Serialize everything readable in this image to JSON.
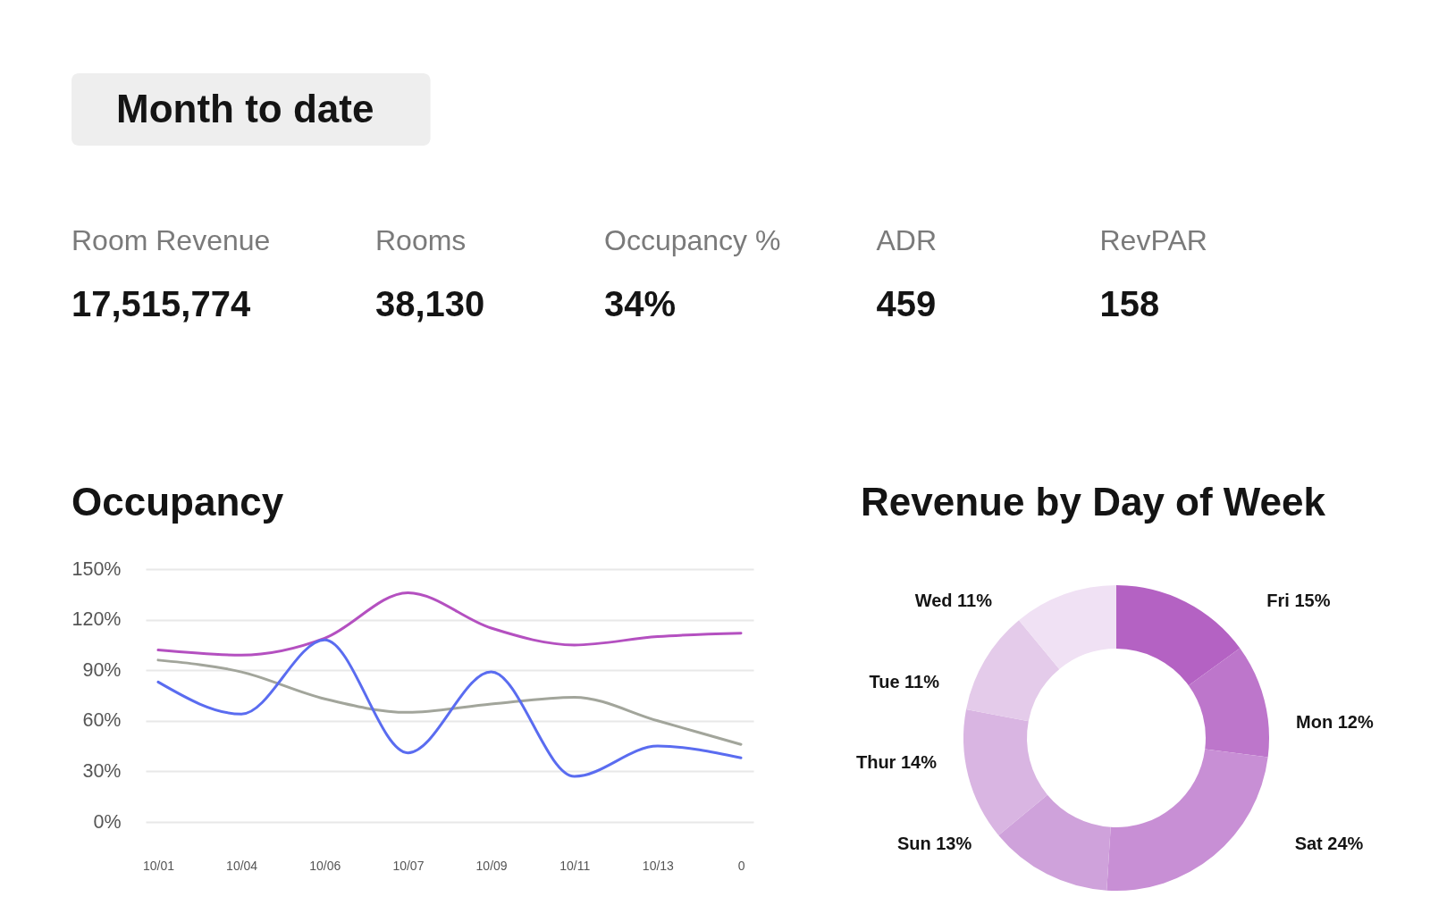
{
  "chart_data": [
    {
      "type": "other",
      "title": "Month to date"
    },
    {
      "type": "other",
      "title": "Room Revenue",
      "annotations": [
        "17,515,774"
      ]
    },
    {
      "type": "other",
      "title": "Rooms",
      "annotations": [
        "38,130"
      ]
    },
    {
      "type": "other",
      "title": "Occupancy %",
      "annotations": [
        "34%"
      ]
    },
    {
      "type": "other",
      "title": "ADR",
      "annotations": [
        "459"
      ]
    },
    {
      "type": "other",
      "title": "RevPAR",
      "annotations": [
        "158"
      ]
    },
    {
      "type": "line",
      "title": "Occupancy",
      "categories": [
        "10/01",
        "10/04",
        "10/06",
        "10/07",
        "10/09",
        "10/11",
        "10/13",
        "0"
      ],
      "series": [
        {
          "color": "#b450c0",
          "values": [
            102,
            99,
            109,
            136,
            115,
            105,
            110,
            112
          ]
        },
        {
          "color": "#a2a59b",
          "values": [
            96,
            89,
            73,
            65,
            70,
            74,
            60,
            46
          ]
        },
        {
          "color": "#5a6cf0",
          "values": [
            83,
            64,
            108,
            41,
            89,
            27,
            45,
            38
          ]
        }
      ],
      "ylim": [
        0,
        150
      ],
      "yticks": [
        {
          "value": 0,
          "label": "0%"
        },
        {
          "value": 30,
          "label": "30%"
        },
        {
          "value": 60,
          "label": "60%"
        },
        {
          "value": 90,
          "label": "90%"
        },
        {
          "value": 120,
          "label": "120%"
        },
        {
          "value": 150,
          "label": "150%"
        }
      ],
      "grid": "y"
    },
    {
      "type": "donut",
      "title": "Revenue by Day of Week",
      "categories": [
        "Fri",
        "Mon",
        "Sat",
        "Sun",
        "Thur",
        "Tue",
        "Wed"
      ],
      "values": [
        15,
        12,
        24,
        13,
        14,
        11,
        11
      ],
      "value_labels": [
        "15%",
        "12%",
        "24%",
        "13%",
        "14%",
        "11%",
        "11%"
      ],
      "colors": [
        "#b462c3",
        "#bd76cb",
        "#c88fd5",
        "#cfa2db",
        "#d9b5e2",
        "#e4cbea",
        "#f0e1f4"
      ]
    }
  ]
}
